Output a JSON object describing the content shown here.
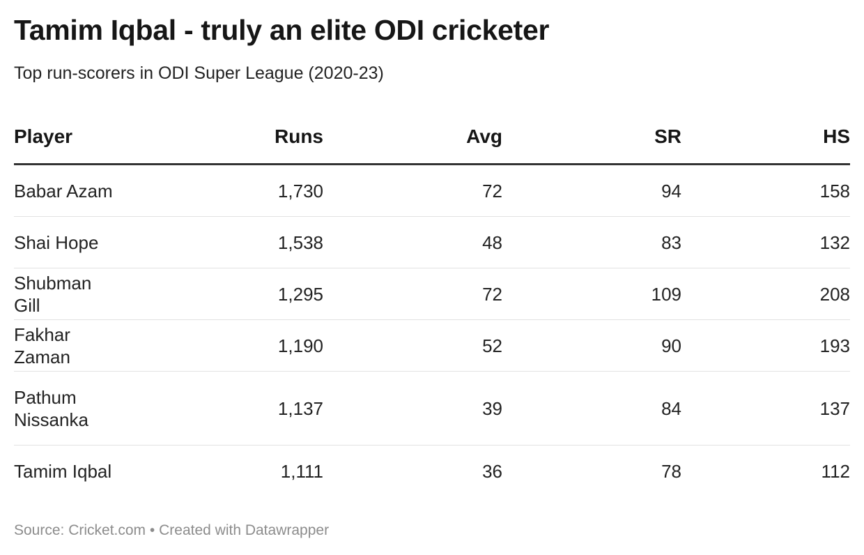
{
  "title": "Tamim Iqbal - truly an elite ODI cricketer",
  "subtitle": "Top run-scorers in ODI Super League (2020-23)",
  "footer": {
    "source": "Source: Cricket.com",
    "separator": "•",
    "credit": "Created with Datawrapper"
  },
  "colors": {
    "header_rule": "#333333",
    "row_rule": "#e2e2e2",
    "text": "#222222",
    "footer_text": "#8c8c8c"
  },
  "chart_data": {
    "type": "table",
    "title": "Tamim Iqbal - truly an elite ODI cricketer",
    "subtitle": "Top run-scorers in ODI Super League (2020-23)",
    "columns": [
      "Player",
      "Runs",
      "Avg",
      "SR",
      "HS"
    ],
    "rows": [
      {
        "player": "Babar Azam",
        "runs": "1,730",
        "avg": "72",
        "sr": "94",
        "hs": "158"
      },
      {
        "player": "Shai Hope",
        "runs": "1,538",
        "avg": "48",
        "sr": "83",
        "hs": "132"
      },
      {
        "player": "Shubman Gill",
        "runs": "1,295",
        "avg": "72",
        "sr": "109",
        "hs": "208"
      },
      {
        "player": "Fakhar Zaman",
        "runs": "1,190",
        "avg": "52",
        "sr": "90",
        "hs": "193"
      },
      {
        "player": "Pathum Nissanka",
        "runs": "1,137",
        "avg": "39",
        "sr": "84",
        "hs": "137"
      },
      {
        "player": "Tamim Iqbal",
        "runs": "1,111",
        "avg": "36",
        "sr": "78",
        "hs": "112"
      }
    ]
  }
}
